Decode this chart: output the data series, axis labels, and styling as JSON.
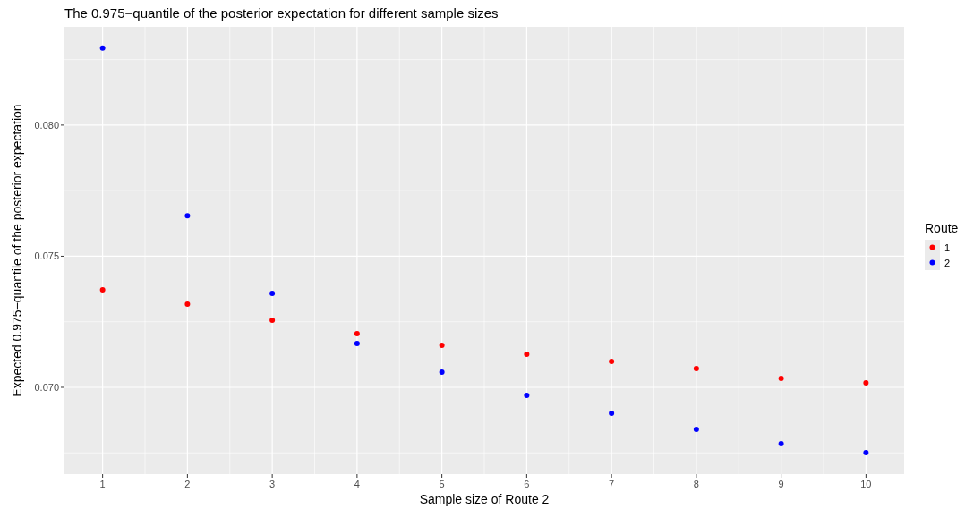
{
  "chart_data": {
    "type": "scatter",
    "title": "The 0.975−quantile of the posterior expectation for different sample sizes",
    "xlabel": "Sample size of Route 2",
    "ylabel": "Expected 0.975−quantile of the posterior expectation",
    "legend_title": "Route",
    "x": [
      1,
      2,
      3,
      4,
      5,
      6,
      7,
      8,
      9,
      10
    ],
    "series": [
      {
        "name": "1",
        "color": "#ff0000",
        "values": [
          0.07372,
          0.07317,
          0.07256,
          0.07205,
          0.0716,
          0.07126,
          0.07099,
          0.07072,
          0.07034,
          0.07017
        ]
      },
      {
        "name": "2",
        "color": "#0000ff",
        "values": [
          0.08294,
          0.07654,
          0.07358,
          0.07167,
          0.07058,
          0.06969,
          0.06901,
          0.0684,
          0.06785,
          0.06751
        ]
      }
    ],
    "xlim": [
      0.55,
      10.45
    ],
    "xticks": [
      1,
      2,
      3,
      4,
      5,
      6,
      7,
      8,
      9,
      10
    ],
    "ylim": [
      0.06669,
      0.08375
    ],
    "yticks": [
      {
        "value": 0.07,
        "label": "0.070"
      },
      {
        "value": 0.075,
        "label": "0.075"
      },
      {
        "value": 0.08,
        "label": "0.080"
      }
    ],
    "grid": true,
    "legend": "right",
    "marker": "circle"
  }
}
